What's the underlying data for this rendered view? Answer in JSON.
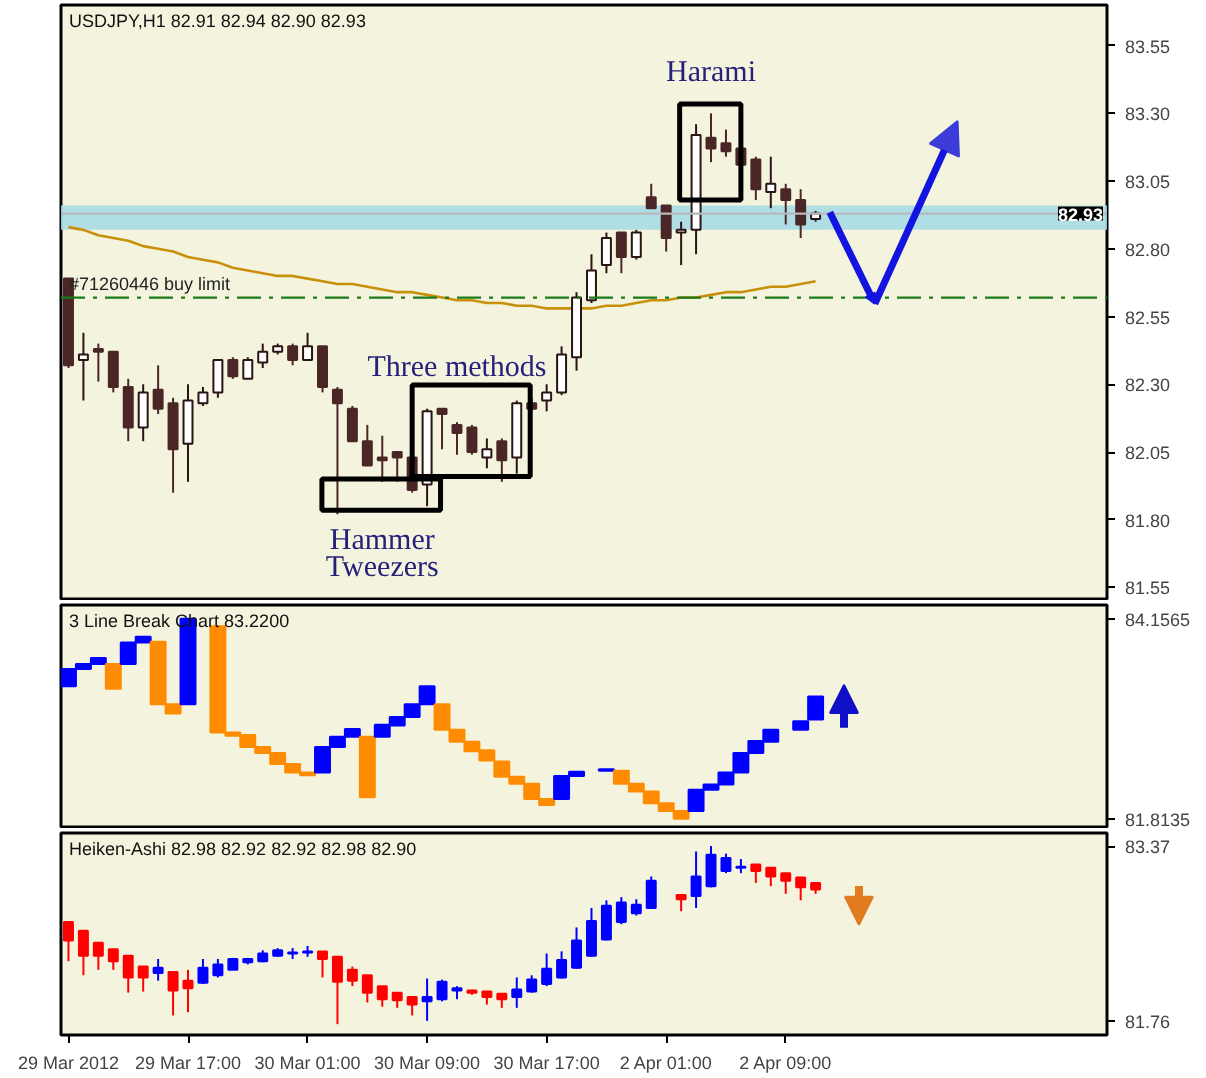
{
  "chart_data": [
    {
      "type": "candlestick",
      "title": "USDJPY,H1 82.91 82.94 82.90 82.93",
      "categories": [
        null,
        null,
        null,
        null,
        null,
        null,
        null,
        null,
        null,
        null,
        null,
        null,
        null,
        null,
        null,
        null,
        null,
        null,
        null,
        null,
        null,
        null,
        null,
        null,
        null,
        null,
        null,
        null,
        null,
        null,
        null,
        null,
        null,
        null,
        null,
        null,
        null,
        null,
        null,
        null,
        null,
        null,
        null,
        null,
        null,
        null,
        null,
        null,
        null,
        null,
        null,
        null,
        null,
        null,
        null,
        null,
        null,
        null,
        null,
        null,
        null,
        null,
        null,
        null,
        null,
        null,
        null,
        null,
        null,
        null
      ],
      "ohlc": [
        [
          82.69,
          82.69,
          82.36,
          82.37
        ],
        [
          82.39,
          82.49,
          82.24,
          82.41
        ],
        [
          82.43,
          82.45,
          82.31,
          82.42
        ],
        [
          82.42,
          82.42,
          82.27,
          82.29
        ],
        [
          82.29,
          82.32,
          82.09,
          82.14
        ],
        [
          82.14,
          82.3,
          82.09,
          82.27
        ],
        [
          82.28,
          82.37,
          82.19,
          82.21
        ],
        [
          82.23,
          82.25,
          81.9,
          82.06
        ],
        [
          82.08,
          82.3,
          81.94,
          82.24
        ],
        [
          82.23,
          82.29,
          82.22,
          82.27
        ],
        [
          82.27,
          82.39,
          82.25,
          82.39
        ],
        [
          82.39,
          82.4,
          82.32,
          82.33
        ],
        [
          82.32,
          82.4,
          82.32,
          82.39
        ],
        [
          82.38,
          82.45,
          82.36,
          82.42
        ],
        [
          82.42,
          82.45,
          82.41,
          82.44
        ],
        [
          82.44,
          82.45,
          82.37,
          82.39
        ],
        [
          82.39,
          82.49,
          82.39,
          82.44
        ],
        [
          82.44,
          82.44,
          82.27,
          82.29
        ],
        [
          82.28,
          82.29,
          81.82,
          82.23
        ],
        [
          82.21,
          82.22,
          82.09,
          82.09
        ],
        [
          82.09,
          82.15,
          82.0,
          82.0
        ],
        [
          82.03,
          82.11,
          81.94,
          82.02
        ],
        [
          82.05,
          82.05,
          81.94,
          82.03
        ],
        [
          82.03,
          82.03,
          81.9,
          81.91
        ],
        [
          81.93,
          82.21,
          81.85,
          82.2
        ],
        [
          82.21,
          82.21,
          82.06,
          82.19
        ],
        [
          82.15,
          82.16,
          82.04,
          82.12
        ],
        [
          82.14,
          82.15,
          82.04,
          82.05
        ],
        [
          82.03,
          82.1,
          81.99,
          82.06
        ],
        [
          82.09,
          82.1,
          81.94,
          82.02
        ],
        [
          82.03,
          82.24,
          81.97,
          82.23
        ],
        [
          82.23,
          82.25,
          82.2,
          82.21
        ],
        [
          82.24,
          82.3,
          82.2,
          82.27
        ],
        [
          82.27,
          82.44,
          82.26,
          82.41
        ],
        [
          82.4,
          82.64,
          82.35,
          82.62
        ],
        [
          82.61,
          82.78,
          82.6,
          82.72
        ],
        [
          82.74,
          82.86,
          82.71,
          82.84
        ],
        [
          82.86,
          82.86,
          82.71,
          82.77
        ],
        [
          82.77,
          82.87,
          82.76,
          82.86
        ],
        [
          82.99,
          83.04,
          82.95,
          82.95
        ],
        [
          82.96,
          82.96,
          82.79,
          82.84
        ],
        [
          82.86,
          82.9,
          82.74,
          82.87
        ],
        [
          82.87,
          83.26,
          82.78,
          83.22
        ],
        [
          83.21,
          83.3,
          83.12,
          83.17
        ],
        [
          83.19,
          83.24,
          83.14,
          83.16
        ],
        [
          83.17,
          83.17,
          83.1,
          83.11
        ],
        [
          83.13,
          83.14,
          82.98,
          83.02
        ],
        [
          83.01,
          83.14,
          82.95,
          83.04
        ],
        [
          83.02,
          83.04,
          82.89,
          82.98
        ],
        [
          82.98,
          83.02,
          82.84,
          82.89
        ],
        [
          82.91,
          82.94,
          82.9,
          82.93
        ],
        null,
        null,
        null,
        null,
        null,
        null,
        null,
        null,
        null,
        null,
        null,
        null,
        null,
        null,
        null,
        null,
        null,
        null,
        null
      ],
      "colors": [
        "#4b2626",
        "#ffffff",
        "#4b2626",
        "#4b2626",
        "#4b2626",
        "#ffffff",
        "#4b2626",
        "#4b2626",
        "#ffffff",
        "#ffffff",
        "#ffffff",
        "#4b2626",
        "#ffffff",
        "#ffffff",
        "#ffffff",
        "#4b2626",
        "#ffffff",
        "#4b2626",
        "#4b2626",
        "#4b2626",
        "#4b2626",
        "#4b2626",
        "#4b2626",
        "#4b2626",
        "#ffffff",
        "#4b2626",
        "#4b2626",
        "#4b2626",
        "#ffffff",
        "#4b2626",
        "#ffffff",
        "#4b2626",
        "#ffffff",
        "#ffffff",
        "#ffffff",
        "#ffffff",
        "#ffffff",
        "#4b2626",
        "#ffffff",
        "#4b2626",
        "#4b2626",
        "#ffffff",
        "#ffffff",
        "#4b2626",
        "#4b2626",
        "#4b2626",
        "#4b2626",
        "#ffffff",
        "#4b2626",
        "#4b2626",
        "#ffffff",
        null,
        null,
        null,
        null,
        null,
        null,
        null,
        null,
        null,
        null,
        null,
        null,
        null,
        null,
        null,
        null,
        null,
        null,
        null
      ],
      "series": [
        {
          "type": "line",
          "color": "#c8900a",
          "values": [
            82.88,
            82.87,
            82.85,
            82.84,
            82.83,
            82.81,
            82.8,
            82.79,
            82.77,
            82.76,
            82.75,
            82.73,
            82.72,
            82.71,
            82.7,
            82.7,
            82.69,
            82.68,
            82.67,
            82.67,
            82.66,
            82.65,
            82.64,
            82.64,
            82.63,
            82.62,
            82.61,
            82.61,
            82.6,
            82.6,
            82.59,
            82.59,
            82.58,
            82.58,
            82.58,
            82.58,
            82.59,
            82.59,
            82.6,
            82.61,
            82.61,
            82.62,
            82.62,
            82.63,
            82.64,
            82.64,
            82.65,
            82.66,
            82.66,
            82.67,
            82.68,
            null,
            null,
            null,
            null,
            null,
            null,
            null,
            null,
            null,
            null,
            null,
            null,
            null,
            null,
            null,
            null,
            null,
            null,
            null
          ]
        }
      ],
      "ylim": [
        81.5,
        83.7
      ],
      "yticks": [
        83.55,
        {
          "value": 83.3,
          "label": "83.30"
        },
        83.05,
        {
          "value": 82.8,
          "label": "82.80"
        },
        82.55,
        {
          "value": 82.3,
          "label": "82.30"
        },
        82.05,
        {
          "value": 81.8,
          "label": "81.80"
        },
        81.55
      ],
      "tick_labels": "y",
      "ref_lines": [
        {
          "axis": "y",
          "value": 82.62,
          "label": "#71260446 buy limit",
          "color": "#1a7a1a",
          "line_style": "dashed"
        },
        {
          "axis": "y",
          "value": 82.93,
          "label": "82.93",
          "color": "#b8b8c0",
          "line_style": "solid"
        }
      ],
      "bands": [
        {
          "axis": "y",
          "from": 82.87,
          "to": 82.96,
          "color": "#a8dce6"
        }
      ],
      "annotations": [
        "Harami",
        "Three methods",
        "Hammer",
        "Tweezers"
      ]
    },
    {
      "type": "bar",
      "title": "3 Line Break Chart 83.2200",
      "categories": [
        null,
        null,
        null,
        null,
        null,
        null,
        null,
        null,
        null,
        null,
        null,
        null,
        null,
        null,
        null,
        null,
        null,
        null,
        null,
        null,
        null,
        null,
        null,
        null,
        null,
        null,
        null,
        null,
        null,
        null,
        null,
        null,
        null,
        null,
        null,
        null,
        null,
        null,
        null,
        null,
        null,
        null,
        null,
        null,
        null,
        null,
        null,
        null,
        null,
        null,
        null,
        null,
        null,
        null,
        null,
        null,
        null,
        null,
        null,
        null,
        null,
        null,
        null,
        null,
        null,
        null,
        null,
        null,
        null,
        null
      ],
      "base": [
        83.37,
        83.57,
        83.63,
        83.34,
        83.63,
        83.88,
        83.16,
        83.05,
        83.16,
        null,
        82.83,
        82.79,
        82.66,
        82.59,
        82.46,
        82.36,
        82.33,
        82.36,
        82.66,
        82.78,
        82.07,
        82.78,
        82.91,
        83.01,
        83.16,
        82.86,
        82.72,
        82.61,
        82.5,
        82.31,
        82.23,
        82.05,
        81.98,
        82.05,
        82.32,
        null,
        82.38,
        82.23,
        82.14,
        82.0,
        81.91,
        81.82,
        81.91,
        82.16,
        82.22,
        82.36,
        82.59,
        82.72,
        null,
        82.86,
        82.98,
        null,
        null,
        null,
        null,
        null,
        null,
        null,
        null,
        null,
        null,
        null,
        null,
        null,
        null,
        null,
        null,
        null,
        null,
        null
      ],
      "values": [
        0.2,
        0.06,
        0.07,
        0.29,
        0.25,
        0.07,
        0.73,
        0.11,
        1.0,
        null,
        1.24,
        0.04,
        0.14,
        0.07,
        0.13,
        0.1,
        0.03,
        0.3,
        0.12,
        0.09,
        0.71,
        0.14,
        0.1,
        0.15,
        0.21,
        0.3,
        0.14,
        0.11,
        0.12,
        0.18,
        0.08,
        0.18,
        0.07,
        0.27,
        0.05,
        null,
        0.02,
        0.15,
        0.09,
        0.14,
        0.09,
        0.09,
        0.25,
        0.06,
        0.14,
        0.23,
        0.14,
        0.14,
        null,
        0.1,
        0.27,
        null,
        null,
        null,
        null,
        null,
        null,
        null,
        null,
        null,
        null,
        null,
        null,
        null,
        null,
        null,
        null,
        null,
        null,
        null
      ],
      "colors": [
        "#0000ff",
        "#0000ff",
        "#0000ff",
        "#ff8c00",
        "#0000ff",
        "#0000ff",
        "#ff8c00",
        "#ff8c00",
        "#0000ff",
        null,
        "#ff8c00",
        "#ff8c00",
        "#ff8c00",
        "#ff8c00",
        "#ff8c00",
        "#ff8c00",
        "#ff8c00",
        "#0000ff",
        "#0000ff",
        "#0000ff",
        "#ff8c00",
        "#0000ff",
        "#0000ff",
        "#0000ff",
        "#0000ff",
        "#ff8c00",
        "#ff8c00",
        "#ff8c00",
        "#ff8c00",
        "#ff8c00",
        "#ff8c00",
        "#ff8c00",
        "#ff8c00",
        "#0000ff",
        "#0000ff",
        null,
        "#0000ff",
        "#ff8c00",
        "#ff8c00",
        "#ff8c00",
        "#ff8c00",
        "#ff8c00",
        "#0000ff",
        "#0000ff",
        "#0000ff",
        "#0000ff",
        "#0000ff",
        "#0000ff",
        null,
        "#0000ff",
        "#0000ff",
        null,
        null,
        null,
        null,
        null,
        null,
        null,
        null,
        null,
        null,
        null,
        null,
        null,
        null,
        null,
        null,
        null,
        null,
        null
      ],
      "ylim": [
        81.7,
        84.32
      ],
      "yticks": [
        84.1565,
        81.8135
      ],
      "tick_labels": "y"
    },
    {
      "type": "candlestick",
      "title": "Heiken-Ashi 82.98 82.92 82.92 82.98 82.90",
      "categories": [
        "29 Mar 2012",
        null,
        null,
        null,
        null,
        null,
        null,
        null,
        "29 Mar 17:00",
        null,
        null,
        null,
        null,
        null,
        null,
        null,
        "30 Mar 01:00",
        null,
        null,
        null,
        null,
        null,
        null,
        null,
        "30 Mar 09:00",
        null,
        null,
        null,
        null,
        null,
        null,
        null,
        "30 Mar 17:00",
        null,
        null,
        null,
        null,
        null,
        null,
        null,
        "2 Apr 01:00",
        null,
        null,
        null,
        null,
        null,
        null,
        null,
        "2 Apr 09:00",
        null,
        null,
        null,
        null,
        null,
        null,
        null,
        null,
        null,
        null,
        null,
        null,
        null,
        null,
        null,
        null,
        null,
        null,
        null,
        null,
        null
      ],
      "ohlc": [
        [
          82.67,
          82.67,
          82.31,
          82.5
        ],
        [
          82.59,
          82.59,
          82.18,
          82.36
        ],
        [
          82.48,
          82.48,
          82.23,
          82.36
        ],
        [
          82.42,
          82.42,
          82.23,
          82.31
        ],
        [
          82.36,
          82.36,
          82.02,
          82.16
        ],
        [
          82.26,
          82.26,
          82.03,
          82.16
        ],
        [
          82.2,
          82.33,
          82.13,
          82.25
        ],
        [
          82.21,
          82.21,
          81.81,
          82.04
        ],
        [
          82.13,
          82.23,
          81.84,
          82.06
        ],
        [
          82.11,
          82.33,
          82.1,
          82.25
        ],
        [
          82.18,
          82.33,
          82.16,
          82.28
        ],
        [
          82.23,
          82.34,
          82.23,
          82.33
        ],
        [
          82.3,
          82.34,
          82.28,
          82.33
        ],
        [
          82.31,
          82.41,
          82.3,
          82.38
        ],
        [
          82.36,
          82.43,
          82.35,
          82.41
        ],
        [
          82.38,
          82.43,
          82.33,
          82.39
        ],
        [
          82.39,
          82.45,
          82.35,
          82.4
        ],
        [
          82.4,
          82.4,
          82.16,
          82.33
        ],
        [
          82.35,
          82.35,
          81.73,
          82.12
        ],
        [
          82.23,
          82.26,
          82.08,
          82.13
        ],
        [
          82.18,
          82.18,
          81.93,
          82.02
        ],
        [
          82.08,
          82.08,
          81.89,
          81.96
        ],
        [
          82.02,
          82.02,
          81.88,
          81.95
        ],
        [
          81.98,
          81.98,
          81.81,
          81.91
        ],
        [
          81.94,
          82.15,
          81.76,
          81.98
        ],
        [
          81.96,
          82.14,
          81.94,
          82.12
        ],
        [
          82.04,
          82.08,
          81.96,
          82.06
        ],
        [
          82.04,
          82.04,
          82.0,
          82.02
        ],
        [
          82.03,
          82.03,
          81.91,
          81.98
        ],
        [
          82.01,
          82.01,
          81.88,
          81.96
        ],
        [
          81.98,
          82.16,
          81.88,
          82.05
        ],
        [
          82.03,
          82.18,
          82.02,
          82.14
        ],
        [
          82.1,
          82.38,
          82.08,
          82.24
        ],
        [
          82.16,
          82.4,
          82.15,
          82.32
        ],
        [
          82.25,
          82.62,
          82.24,
          82.5
        ],
        [
          82.36,
          82.8,
          82.35,
          82.68
        ],
        [
          82.51,
          82.87,
          82.5,
          82.82
        ],
        [
          82.67,
          82.9,
          82.65,
          82.85
        ],
        [
          82.75,
          82.88,
          82.73,
          82.83
        ],
        [
          82.8,
          83.09,
          82.79,
          83.05
        ],
        null,
        [
          82.92,
          82.92,
          82.77,
          82.88
        ],
        [
          82.91,
          83.32,
          82.8,
          83.09
        ],
        [
          83.0,
          83.37,
          82.99,
          83.29
        ],
        [
          83.14,
          83.3,
          83.12,
          83.26
        ],
        [
          83.17,
          83.25,
          83.12,
          83.18
        ],
        [
          83.2,
          83.2,
          83.03,
          83.14
        ],
        [
          83.17,
          83.17,
          83.0,
          83.09
        ],
        [
          83.12,
          83.12,
          82.93,
          83.05
        ],
        [
          83.08,
          83.08,
          82.87,
          82.99
        ],
        [
          83.03,
          83.03,
          82.93,
          82.97
        ],
        null,
        null,
        null,
        null,
        null,
        null,
        null,
        null,
        null,
        null,
        null,
        null,
        null,
        null,
        null,
        null,
        null,
        null,
        null
      ],
      "colors": [
        "#ff0000",
        "#ff0000",
        "#ff0000",
        "#ff0000",
        "#ff0000",
        "#ff0000",
        "#0000ff",
        "#ff0000",
        "#ff0000",
        "#0000ff",
        "#0000ff",
        "#0000ff",
        "#0000ff",
        "#0000ff",
        "#0000ff",
        "#0000ff",
        "#0000ff",
        "#ff0000",
        "#ff0000",
        "#ff0000",
        "#ff0000",
        "#ff0000",
        "#ff0000",
        "#ff0000",
        "#0000ff",
        "#0000ff",
        "#0000ff",
        "#ff0000",
        "#ff0000",
        "#ff0000",
        "#0000ff",
        "#0000ff",
        "#0000ff",
        "#0000ff",
        "#0000ff",
        "#0000ff",
        "#0000ff",
        "#0000ff",
        "#0000ff",
        "#0000ff",
        null,
        "#ff0000",
        "#0000ff",
        "#0000ff",
        "#0000ff",
        "#0000ff",
        "#ff0000",
        "#ff0000",
        "#ff0000",
        "#ff0000",
        "#ff0000",
        null,
        null,
        null,
        null,
        null,
        null,
        null,
        null,
        null,
        null,
        null,
        null,
        null,
        null,
        null,
        null,
        null,
        null,
        null
      ],
      "ylim": [
        81.63,
        83.49
      ],
      "yticks": [
        83.37,
        81.76
      ]
    }
  ]
}
